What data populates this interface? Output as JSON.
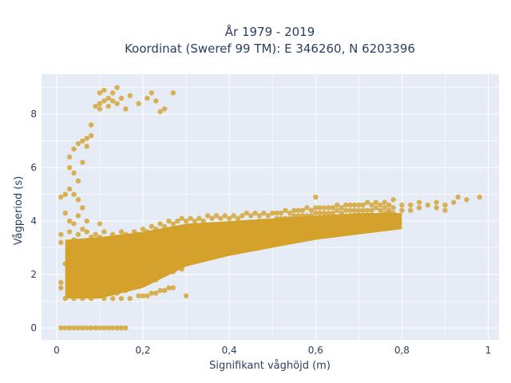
{
  "chart_data": {
    "type": "scatter",
    "title_line1": "År 1979 - 2019",
    "title_line2": "Koordinat (Sweref 99 TM): E 346260, N 6203396",
    "xlabel": "Signifikant våghöjd (m)",
    "ylabel": "Vågperiod (s)",
    "xlim": [
      -0.035,
      1.025
    ],
    "ylim": [
      -0.45,
      9.5
    ],
    "x_ticks": [
      {
        "value": 0,
        "label": "0"
      },
      {
        "value": 0.2,
        "label": "0,2"
      },
      {
        "value": 0.4,
        "label": "0,4"
      },
      {
        "value": 0.6,
        "label": "0,6"
      },
      {
        "value": 0.8,
        "label": "0,8"
      },
      {
        "value": 1.0,
        "label": "1"
      }
    ],
    "y_ticks": [
      {
        "value": 0,
        "label": "0"
      },
      {
        "value": 2,
        "label": "2"
      },
      {
        "value": 4,
        "label": "4"
      },
      {
        "value": 6,
        "label": "6"
      },
      {
        "value": 8,
        "label": "8"
      }
    ],
    "grid": true,
    "colors": {
      "marker": "#d4a12a",
      "plot_bg": "#e5ecf6",
      "grid": "#ffffff",
      "text": "#2a3f5f"
    },
    "points": [
      [
        0.01,
        0
      ],
      [
        0.02,
        0
      ],
      [
        0.03,
        0
      ],
      [
        0.04,
        0
      ],
      [
        0.05,
        0
      ],
      [
        0.06,
        0
      ],
      [
        0.07,
        0
      ],
      [
        0.08,
        0
      ],
      [
        0.09,
        0
      ],
      [
        0.1,
        0
      ],
      [
        0.11,
        0
      ],
      [
        0.12,
        0
      ],
      [
        0.13,
        0
      ],
      [
        0.14,
        0
      ],
      [
        0.15,
        0
      ],
      [
        0.16,
        0
      ],
      [
        0.01,
        1.5
      ],
      [
        0.01,
        1.7
      ],
      [
        0.01,
        3.2
      ],
      [
        0.01,
        3.5
      ],
      [
        0.01,
        4.9
      ],
      [
        0.02,
        5.0
      ],
      [
        0.02,
        4.3
      ],
      [
        0.02,
        2.4
      ],
      [
        0.02,
        1.1
      ],
      [
        0.03,
        4.0
      ],
      [
        0.03,
        3.6
      ],
      [
        0.03,
        2.8
      ],
      [
        0.03,
        2.0
      ],
      [
        0.03,
        1.2
      ],
      [
        0.03,
        6.0
      ],
      [
        0.03,
        6.4
      ],
      [
        0.03,
        5.2
      ],
      [
        0.04,
        3.9
      ],
      [
        0.04,
        3.3
      ],
      [
        0.04,
        2.5
      ],
      [
        0.04,
        1.7
      ],
      [
        0.04,
        1.1
      ],
      [
        0.04,
        5.8
      ],
      [
        0.04,
        6.7
      ],
      [
        0.04,
        5.0
      ],
      [
        0.05,
        4.2
      ],
      [
        0.05,
        3.5
      ],
      [
        0.05,
        2.9
      ],
      [
        0.05,
        2.2
      ],
      [
        0.05,
        1.4
      ],
      [
        0.05,
        5.5
      ],
      [
        0.05,
        6.9
      ],
      [
        0.05,
        4.8
      ],
      [
        0.06,
        3.7
      ],
      [
        0.06,
        3.0
      ],
      [
        0.06,
        2.4
      ],
      [
        0.06,
        1.6
      ],
      [
        0.06,
        1.1
      ],
      [
        0.06,
        7.0
      ],
      [
        0.06,
        6.2
      ],
      [
        0.06,
        4.5
      ],
      [
        0.07,
        3.6
      ],
      [
        0.07,
        2.6
      ],
      [
        0.07,
        2.0
      ],
      [
        0.07,
        1.3
      ],
      [
        0.07,
        7.1
      ],
      [
        0.07,
        6.8
      ],
      [
        0.07,
        4.0
      ],
      [
        0.08,
        3.4
      ],
      [
        0.08,
        2.9
      ],
      [
        0.08,
        2.2
      ],
      [
        0.08,
        1.5
      ],
      [
        0.08,
        1.1
      ],
      [
        0.08,
        7.6
      ],
      [
        0.08,
        7.2
      ],
      [
        0.09,
        3.5
      ],
      [
        0.09,
        2.8
      ],
      [
        0.09,
        2.1
      ],
      [
        0.09,
        1.4
      ],
      [
        0.1,
        3.4
      ],
      [
        0.1,
        2.7
      ],
      [
        0.1,
        2.0
      ],
      [
        0.1,
        1.2
      ],
      [
        0.1,
        3.9
      ],
      [
        0.11,
        3.6
      ],
      [
        0.11,
        3.0
      ],
      [
        0.11,
        2.3
      ],
      [
        0.11,
        1.6
      ],
      [
        0.11,
        1.1
      ],
      [
        0.12,
        3.3
      ],
      [
        0.12,
        2.6
      ],
      [
        0.12,
        1.9
      ],
      [
        0.12,
        1.3
      ],
      [
        0.13,
        3.5
      ],
      [
        0.13,
        2.9
      ],
      [
        0.13,
        2.2
      ],
      [
        0.13,
        1.5
      ],
      [
        0.13,
        1.1
      ],
      [
        0.14,
        3.4
      ],
      [
        0.14,
        2.7
      ],
      [
        0.14,
        2.0
      ],
      [
        0.14,
        1.3
      ],
      [
        0.15,
        3.6
      ],
      [
        0.15,
        3.0
      ],
      [
        0.15,
        2.3
      ],
      [
        0.15,
        1.6
      ],
      [
        0.15,
        1.1
      ],
      [
        0.16,
        3.5
      ],
      [
        0.16,
        2.8
      ],
      [
        0.16,
        2.1
      ],
      [
        0.16,
        1.4
      ],
      [
        0.17,
        3.4
      ],
      [
        0.17,
        2.9
      ],
      [
        0.17,
        2.2
      ],
      [
        0.17,
        1.5
      ],
      [
        0.17,
        1.1
      ],
      [
        0.18,
        3.6
      ],
      [
        0.18,
        3.0
      ],
      [
        0.18,
        2.4
      ],
      [
        0.18,
        1.7
      ],
      [
        0.19,
        3.5
      ],
      [
        0.19,
        2.9
      ],
      [
        0.19,
        2.3
      ],
      [
        0.19,
        1.6
      ],
      [
        0.19,
        1.2
      ],
      [
        0.2,
        3.7
      ],
      [
        0.2,
        3.1
      ],
      [
        0.2,
        2.5
      ],
      [
        0.2,
        1.8
      ],
      [
        0.2,
        1.2
      ],
      [
        0.21,
        3.6
      ],
      [
        0.21,
        3.0
      ],
      [
        0.21,
        2.4
      ],
      [
        0.21,
        1.7
      ],
      [
        0.21,
        1.2
      ],
      [
        0.22,
        3.8
      ],
      [
        0.22,
        3.2
      ],
      [
        0.22,
        2.6
      ],
      [
        0.22,
        1.9
      ],
      [
        0.22,
        1.3
      ],
      [
        0.23,
        3.7
      ],
      [
        0.23,
        3.1
      ],
      [
        0.23,
        2.5
      ],
      [
        0.23,
        1.8
      ],
      [
        0.23,
        1.3
      ],
      [
        0.24,
        3.9
      ],
      [
        0.24,
        3.3
      ],
      [
        0.24,
        2.7
      ],
      [
        0.24,
        2.0
      ],
      [
        0.24,
        1.4
      ],
      [
        0.25,
        3.8
      ],
      [
        0.25,
        3.2
      ],
      [
        0.25,
        2.6
      ],
      [
        0.25,
        2.0
      ],
      [
        0.25,
        1.4
      ],
      [
        0.26,
        4.0
      ],
      [
        0.26,
        3.4
      ],
      [
        0.26,
        2.8
      ],
      [
        0.26,
        2.1
      ],
      [
        0.26,
        1.5
      ],
      [
        0.27,
        3.9
      ],
      [
        0.27,
        3.3
      ],
      [
        0.27,
        2.7
      ],
      [
        0.27,
        2.1
      ],
      [
        0.27,
        1.5
      ],
      [
        0.28,
        4.0
      ],
      [
        0.28,
        3.5
      ],
      [
        0.28,
        2.9
      ],
      [
        0.28,
        2.3
      ],
      [
        0.29,
        4.1
      ],
      [
        0.29,
        3.4
      ],
      [
        0.29,
        2.8
      ],
      [
        0.29,
        2.2
      ],
      [
        0.3,
        4.0
      ],
      [
        0.3,
        3.5
      ],
      [
        0.3,
        3.0
      ],
      [
        0.3,
        2.4
      ],
      [
        0.3,
        1.2
      ],
      [
        0.31,
        4.1
      ],
      [
        0.31,
        3.5
      ],
      [
        0.31,
        2.8
      ],
      [
        0.32,
        4.0
      ],
      [
        0.32,
        3.6
      ],
      [
        0.32,
        3.0
      ],
      [
        0.33,
        4.1
      ],
      [
        0.33,
        3.5
      ],
      [
        0.33,
        2.9
      ],
      [
        0.34,
        4.0
      ],
      [
        0.34,
        3.6
      ],
      [
        0.34,
        3.0
      ],
      [
        0.35,
        4.2
      ],
      [
        0.35,
        3.7
      ],
      [
        0.35,
        3.1
      ],
      [
        0.36,
        4.1
      ],
      [
        0.36,
        3.6
      ],
      [
        0.36,
        3.1
      ],
      [
        0.37,
        4.2
      ],
      [
        0.37,
        3.7
      ],
      [
        0.37,
        3.2
      ],
      [
        0.38,
        4.1
      ],
      [
        0.38,
        3.7
      ],
      [
        0.38,
        3.2
      ],
      [
        0.39,
        4.2
      ],
      [
        0.39,
        3.8
      ],
      [
        0.39,
        3.3
      ],
      [
        0.4,
        4.1
      ],
      [
        0.4,
        3.8
      ],
      [
        0.4,
        3.3
      ],
      [
        0.41,
        4.2
      ],
      [
        0.41,
        3.8
      ],
      [
        0.41,
        3.4
      ],
      [
        0.42,
        4.1
      ],
      [
        0.42,
        3.8
      ],
      [
        0.42,
        3.4
      ],
      [
        0.43,
        4.2
      ],
      [
        0.43,
        3.9
      ],
      [
        0.43,
        3.4
      ],
      [
        0.44,
        4.3
      ],
      [
        0.44,
        3.9
      ],
      [
        0.44,
        3.5
      ],
      [
        0.45,
        4.2
      ],
      [
        0.45,
        3.9
      ],
      [
        0.45,
        3.5
      ],
      [
        0.46,
        4.3
      ],
      [
        0.46,
        3.9
      ],
      [
        0.46,
        3.6
      ],
      [
        0.47,
        4.2
      ],
      [
        0.47,
        4.0
      ],
      [
        0.47,
        3.6
      ],
      [
        0.48,
        4.3
      ],
      [
        0.48,
        4.0
      ],
      [
        0.48,
        3.6
      ],
      [
        0.49,
        4.2
      ],
      [
        0.49,
        4.0
      ],
      [
        0.49,
        3.7
      ],
      [
        0.5,
        4.3
      ],
      [
        0.5,
        4.0
      ],
      [
        0.5,
        3.7
      ],
      [
        0.51,
        4.3
      ],
      [
        0.51,
        4.1
      ],
      [
        0.51,
        3.7
      ],
      [
        0.52,
        4.3
      ],
      [
        0.52,
        4.1
      ],
      [
        0.52,
        3.8
      ],
      [
        0.53,
        4.4
      ],
      [
        0.53,
        4.1
      ],
      [
        0.53,
        3.8
      ],
      [
        0.54,
        4.3
      ],
      [
        0.54,
        4.1
      ],
      [
        0.54,
        3.8
      ],
      [
        0.55,
        4.4
      ],
      [
        0.55,
        4.2
      ],
      [
        0.55,
        3.9
      ],
      [
        0.56,
        4.4
      ],
      [
        0.56,
        4.2
      ],
      [
        0.56,
        3.9
      ],
      [
        0.57,
        4.4
      ],
      [
        0.57,
        4.2
      ],
      [
        0.57,
        3.9
      ],
      [
        0.58,
        4.5
      ],
      [
        0.58,
        4.2
      ],
      [
        0.58,
        4.0
      ],
      [
        0.59,
        4.4
      ],
      [
        0.59,
        4.2
      ],
      [
        0.59,
        4.0
      ],
      [
        0.6,
        4.9
      ],
      [
        0.6,
        4.5
      ],
      [
        0.6,
        4.3
      ],
      [
        0.6,
        4.0
      ],
      [
        0.61,
        4.5
      ],
      [
        0.61,
        4.3
      ],
      [
        0.61,
        4.0
      ],
      [
        0.62,
        4.5
      ],
      [
        0.62,
        4.3
      ],
      [
        0.62,
        4.0
      ],
      [
        0.63,
        4.5
      ],
      [
        0.63,
        4.3
      ],
      [
        0.63,
        4.1
      ],
      [
        0.64,
        4.5
      ],
      [
        0.64,
        4.3
      ],
      [
        0.64,
        4.1
      ],
      [
        0.65,
        4.6
      ],
      [
        0.65,
        4.4
      ],
      [
        0.65,
        4.1
      ],
      [
        0.66,
        4.5
      ],
      [
        0.66,
        4.3
      ],
      [
        0.66,
        4.1
      ],
      [
        0.67,
        4.6
      ],
      [
        0.67,
        4.4
      ],
      [
        0.67,
        4.1
      ],
      [
        0.68,
        4.6
      ],
      [
        0.68,
        4.4
      ],
      [
        0.68,
        4.2
      ],
      [
        0.69,
        4.6
      ],
      [
        0.69,
        4.4
      ],
      [
        0.69,
        4.2
      ],
      [
        0.7,
        4.6
      ],
      [
        0.7,
        4.4
      ],
      [
        0.7,
        4.2
      ],
      [
        0.71,
        4.6
      ],
      [
        0.71,
        4.4
      ],
      [
        0.71,
        4.2
      ],
      [
        0.72,
        4.7
      ],
      [
        0.72,
        4.4
      ],
      [
        0.72,
        4.2
      ],
      [
        0.73,
        4.6
      ],
      [
        0.73,
        4.4
      ],
      [
        0.73,
        4.2
      ],
      [
        0.74,
        4.7
      ],
      [
        0.74,
        4.5
      ],
      [
        0.74,
        4.2
      ],
      [
        0.75,
        4.6
      ],
      [
        0.75,
        4.4
      ],
      [
        0.75,
        4.2
      ],
      [
        0.76,
        4.7
      ],
      [
        0.76,
        4.5
      ],
      [
        0.76,
        4.3
      ],
      [
        0.77,
        4.6
      ],
      [
        0.77,
        4.4
      ],
      [
        0.77,
        4.3
      ],
      [
        0.78,
        4.8
      ],
      [
        0.78,
        4.5
      ],
      [
        0.78,
        4.3
      ],
      [
        0.8,
        4.6
      ],
      [
        0.8,
        4.4
      ],
      [
        0.82,
        4.6
      ],
      [
        0.82,
        4.4
      ],
      [
        0.84,
        4.7
      ],
      [
        0.84,
        4.5
      ],
      [
        0.86,
        4.6
      ],
      [
        0.88,
        4.7
      ],
      [
        0.88,
        4.5
      ],
      [
        0.9,
        4.6
      ],
      [
        0.9,
        4.4
      ],
      [
        0.92,
        4.7
      ],
      [
        0.93,
        4.9
      ],
      [
        0.95,
        4.8
      ],
      [
        0.98,
        4.9
      ],
      [
        0.09,
        8.3
      ],
      [
        0.1,
        8.4
      ],
      [
        0.1,
        8.8
      ],
      [
        0.1,
        8.2
      ],
      [
        0.11,
        8.5
      ],
      [
        0.11,
        8.9
      ],
      [
        0.12,
        8.6
      ],
      [
        0.12,
        8.3
      ],
      [
        0.13,
        8.5
      ],
      [
        0.13,
        8.8
      ],
      [
        0.14,
        8.4
      ],
      [
        0.14,
        9.0
      ],
      [
        0.15,
        8.6
      ],
      [
        0.16,
        8.2
      ],
      [
        0.17,
        8.7
      ],
      [
        0.19,
        8.4
      ],
      [
        0.22,
        8.8
      ],
      [
        0.24,
        8.1
      ],
      [
        0.25,
        8.2
      ],
      [
        0.27,
        8.8
      ],
      [
        0.23,
        8.5
      ],
      [
        0.21,
        8.6
      ]
    ]
  }
}
